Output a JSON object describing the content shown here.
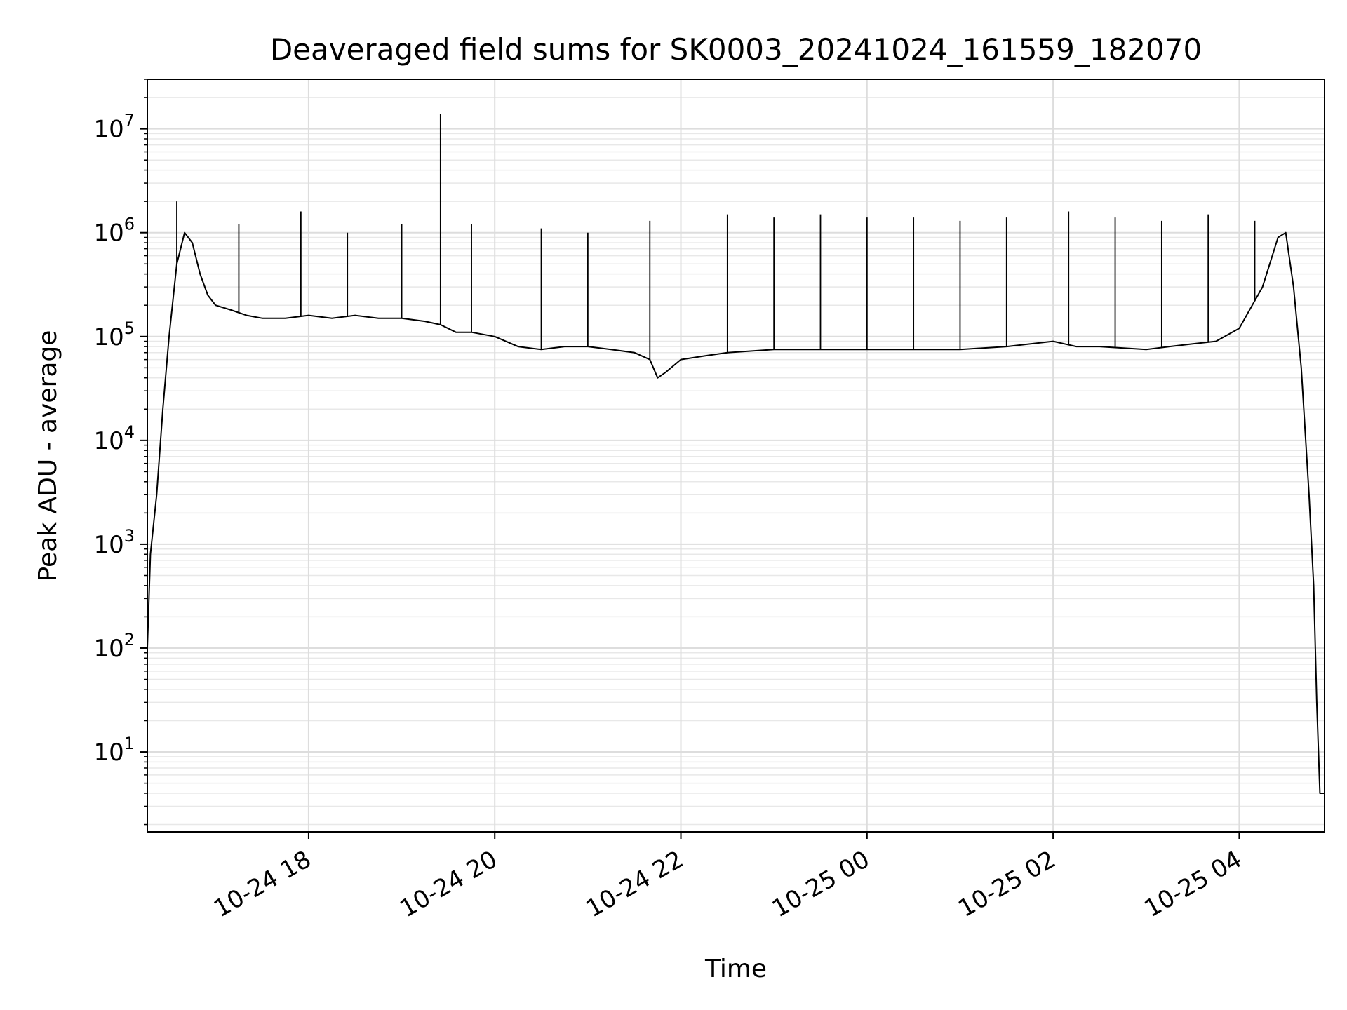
{
  "chart_data": {
    "type": "line",
    "title": "Deaveraged field sums for SK0003_20241024_161559_182070",
    "xlabel": "Time",
    "ylabel": "Peak ADU - average",
    "y_scale": "log",
    "ylim": [
      1.7,
      30000000
    ],
    "xlim": [
      "2024-10-24 16:16",
      "2024-10-25 04:55"
    ],
    "x_ticks": [
      {
        "label": "10-24 18",
        "value": "2024-10-24 18:00"
      },
      {
        "label": "10-24 20",
        "value": "2024-10-24 20:00"
      },
      {
        "label": "10-24 22",
        "value": "2024-10-24 22:00"
      },
      {
        "label": "10-25 00",
        "value": "2024-10-25 00:00"
      },
      {
        "label": "10-25 02",
        "value": "2024-10-25 02:00"
      },
      {
        "label": "10-25 04",
        "value": "2024-10-25 04:00"
      }
    ],
    "y_ticks": [
      {
        "base": "10",
        "exp": "1",
        "value": 10
      },
      {
        "base": "10",
        "exp": "2",
        "value": 100
      },
      {
        "base": "10",
        "exp": "3",
        "value": 1000
      },
      {
        "base": "10",
        "exp": "4",
        "value": 10000
      },
      {
        "base": "10",
        "exp": "5",
        "value": 100000
      },
      {
        "base": "10",
        "exp": "6",
        "value": 1000000
      },
      {
        "base": "10",
        "exp": "7",
        "value": 10000000
      }
    ],
    "grid": true,
    "series_color": "#000000",
    "series": [
      {
        "x": [
          "2024-10-24 16:16",
          "2024-10-24 16:18",
          "2024-10-24 16:22",
          "2024-10-24 16:26",
          "2024-10-24 16:30",
          "2024-10-24 16:35",
          "2024-10-24 16:40",
          "2024-10-24 16:45",
          "2024-10-24 16:50",
          "2024-10-24 16:55",
          "2024-10-24 17:00",
          "2024-10-24 17:10",
          "2024-10-24 17:20",
          "2024-10-24 17:30",
          "2024-10-24 17:45",
          "2024-10-24 18:00",
          "2024-10-24 18:15",
          "2024-10-24 18:30",
          "2024-10-24 18:45",
          "2024-10-24 19:00",
          "2024-10-24 19:15",
          "2024-10-24 19:25",
          "2024-10-24 19:35",
          "2024-10-24 19:45",
          "2024-10-24 20:00",
          "2024-10-24 20:15",
          "2024-10-24 20:30",
          "2024-10-24 20:45",
          "2024-10-24 21:00",
          "2024-10-24 21:15",
          "2024-10-24 21:30",
          "2024-10-24 21:40",
          "2024-10-24 21:45",
          "2024-10-24 21:50",
          "2024-10-24 22:00",
          "2024-10-24 22:15",
          "2024-10-24 22:30",
          "2024-10-24 23:00",
          "2024-10-24 23:30",
          "2024-10-25 00:00",
          "2024-10-25 00:30",
          "2024-10-25 01:00",
          "2024-10-25 01:30",
          "2024-10-25 02:00",
          "2024-10-25 02:15",
          "2024-10-25 02:30",
          "2024-10-25 03:00",
          "2024-10-25 03:15",
          "2024-10-25 03:30",
          "2024-10-25 03:45",
          "2024-10-25 04:00",
          "2024-10-25 04:15",
          "2024-10-25 04:25",
          "2024-10-25 04:30",
          "2024-10-25 04:35",
          "2024-10-25 04:40",
          "2024-10-25 04:45",
          "2024-10-25 04:48",
          "2024-10-25 04:50",
          "2024-10-25 04:52",
          "2024-10-25 04:54",
          "2024-10-25 04:55"
        ],
        "y": [
          100,
          800,
          3000,
          20000,
          100000,
          500000,
          1000000,
          800000,
          400000,
          250000,
          200000,
          180000,
          160000,
          150000,
          150000,
          160000,
          150000,
          160000,
          150000,
          150000,
          140000,
          130000,
          110000,
          110000,
          100000,
          80000,
          75000,
          80000,
          80000,
          75000,
          70000,
          60000,
          40000,
          45000,
          60000,
          65000,
          70000,
          75000,
          75000,
          75000,
          75000,
          75000,
          80000,
          90000,
          80000,
          80000,
          75000,
          80000,
          85000,
          90000,
          120000,
          300000,
          900000,
          1000000,
          300000,
          50000,
          3000,
          400,
          30,
          4,
          4,
          4
        ]
      }
    ],
    "spikes": [
      {
        "x": "2024-10-24 16:35",
        "y": 2000000
      },
      {
        "x": "2024-10-24 17:15",
        "y": 1200000
      },
      {
        "x": "2024-10-24 17:55",
        "y": 1600000
      },
      {
        "x": "2024-10-24 18:25",
        "y": 1000000
      },
      {
        "x": "2024-10-24 19:00",
        "y": 1200000
      },
      {
        "x": "2024-10-24 19:25",
        "y": 14000000
      },
      {
        "x": "2024-10-24 19:45",
        "y": 1200000
      },
      {
        "x": "2024-10-24 20:30",
        "y": 1100000
      },
      {
        "x": "2024-10-24 21:00",
        "y": 1000000
      },
      {
        "x": "2024-10-24 21:40",
        "y": 1300000
      },
      {
        "x": "2024-10-24 22:30",
        "y": 1500000
      },
      {
        "x": "2024-10-24 23:00",
        "y": 1400000
      },
      {
        "x": "2024-10-24 23:30",
        "y": 1500000
      },
      {
        "x": "2024-10-25 00:00",
        "y": 1400000
      },
      {
        "x": "2024-10-25 00:30",
        "y": 1400000
      },
      {
        "x": "2024-10-25 01:00",
        "y": 1300000
      },
      {
        "x": "2024-10-25 01:30",
        "y": 1400000
      },
      {
        "x": "2024-10-25 02:10",
        "y": 1600000
      },
      {
        "x": "2024-10-25 02:40",
        "y": 1400000
      },
      {
        "x": "2024-10-25 03:10",
        "y": 1300000
      },
      {
        "x": "2024-10-25 03:40",
        "y": 1500000
      },
      {
        "x": "2024-10-25 04:10",
        "y": 1300000
      }
    ]
  }
}
